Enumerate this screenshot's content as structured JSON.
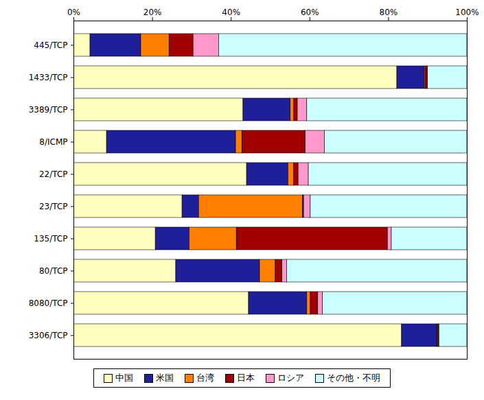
{
  "chart_data": {
    "type": "bar",
    "orientation": "horizontal",
    "stacked": true,
    "grid": false,
    "legend": "bottom",
    "categories": [
      "445/TCP",
      "1433/TCP",
      "3389/TCP",
      "8/ICMP",
      "22/TCP",
      "23/TCP",
      "135/TCP",
      "80/TCP",
      "8080/TCP",
      "3306/TCP"
    ],
    "series": [
      {
        "name": "中国",
        "color": "#ffffc0",
        "values": [
          4.2,
          82.2,
          43.1,
          8.4,
          44.0,
          27.6,
          20.8,
          26.0,
          44.5,
          83.4
        ]
      },
      {
        "name": "米国",
        "color": "#1f1f9a",
        "values": [
          12.9,
          7.0,
          12.0,
          32.8,
          10.5,
          4.2,
          8.6,
          21.3,
          14.8,
          8.9
        ]
      },
      {
        "name": "台湾",
        "color": "#ff7f00",
        "values": [
          7.2,
          0.2,
          0.9,
          1.6,
          1.4,
          26.4,
          12.0,
          4.0,
          0.9,
          0.1
        ]
      },
      {
        "name": "日本",
        "color": "#a00000",
        "values": [
          6.1,
          0.5,
          0.9,
          16.1,
          1.2,
          0.3,
          38.4,
          1.7,
          1.9,
          0.4
        ]
      },
      {
        "name": "ロシア",
        "color": "#ff99cc",
        "values": [
          6.5,
          0.1,
          2.4,
          4.9,
          2.6,
          1.7,
          1.0,
          1.2,
          1.2,
          0.1
        ]
      },
      {
        "name": "その他・不明",
        "color": "#ccffff",
        "values": [
          63.1,
          10.0,
          40.7,
          36.2,
          40.3,
          39.8,
          19.2,
          45.8,
          36.7,
          7.1
        ]
      }
    ],
    "xlim": [
      0,
      100
    ],
    "xticks": [
      {
        "value": 0,
        "label": "0%"
      },
      {
        "value": 20,
        "label": "20%"
      },
      {
        "value": 40,
        "label": "40%"
      },
      {
        "value": 60,
        "label": "60%"
      },
      {
        "value": 80,
        "label": "80%"
      },
      {
        "value": 100,
        "label": "100%"
      }
    ]
  }
}
